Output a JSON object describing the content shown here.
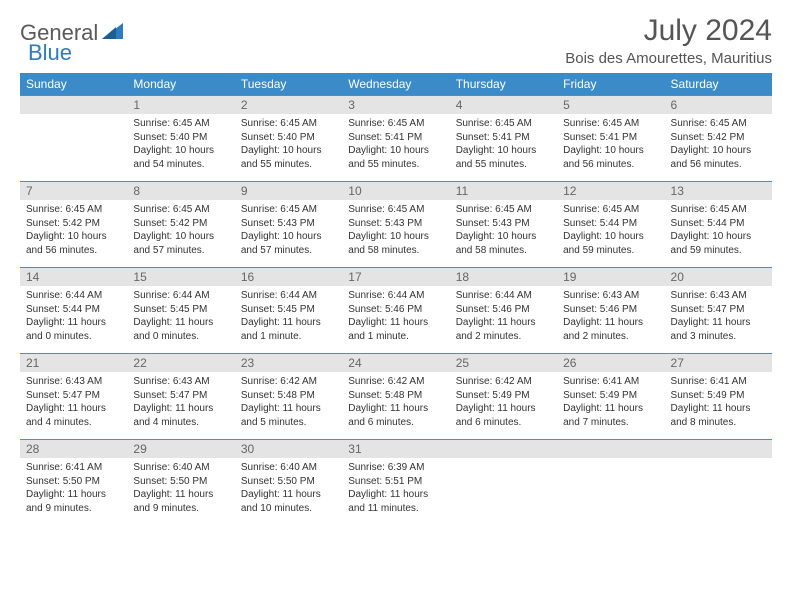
{
  "brand": {
    "part1": "General",
    "part2": "Blue"
  },
  "title": "July 2024",
  "location": "Bois des Amourettes, Mauritius",
  "styling": {
    "header_bg": "#3b8bc9",
    "header_text": "#ffffff",
    "daynum_bg": "#e4e4e4",
    "daynum_text": "#666666",
    "body_text": "#333333",
    "title_color": "#555555",
    "cell_border_top": "#4a8fc6",
    "page_bg": "#ffffff",
    "header_fontsize": 12,
    "daynum_fontsize": 12,
    "data_fontsize": 10,
    "title_fontsize": 30,
    "location_fontsize": 15
  },
  "weekdays": [
    "Sunday",
    "Monday",
    "Tuesday",
    "Wednesday",
    "Thursday",
    "Friday",
    "Saturday"
  ],
  "weeks": [
    [
      null,
      {
        "n": "1",
        "sr": "Sunrise: 6:45 AM",
        "ss": "Sunset: 5:40 PM",
        "dl": "Daylight: 10 hours and 54 minutes."
      },
      {
        "n": "2",
        "sr": "Sunrise: 6:45 AM",
        "ss": "Sunset: 5:40 PM",
        "dl": "Daylight: 10 hours and 55 minutes."
      },
      {
        "n": "3",
        "sr": "Sunrise: 6:45 AM",
        "ss": "Sunset: 5:41 PM",
        "dl": "Daylight: 10 hours and 55 minutes."
      },
      {
        "n": "4",
        "sr": "Sunrise: 6:45 AM",
        "ss": "Sunset: 5:41 PM",
        "dl": "Daylight: 10 hours and 55 minutes."
      },
      {
        "n": "5",
        "sr": "Sunrise: 6:45 AM",
        "ss": "Sunset: 5:41 PM",
        "dl": "Daylight: 10 hours and 56 minutes."
      },
      {
        "n": "6",
        "sr": "Sunrise: 6:45 AM",
        "ss": "Sunset: 5:42 PM",
        "dl": "Daylight: 10 hours and 56 minutes."
      }
    ],
    [
      {
        "n": "7",
        "sr": "Sunrise: 6:45 AM",
        "ss": "Sunset: 5:42 PM",
        "dl": "Daylight: 10 hours and 56 minutes."
      },
      {
        "n": "8",
        "sr": "Sunrise: 6:45 AM",
        "ss": "Sunset: 5:42 PM",
        "dl": "Daylight: 10 hours and 57 minutes."
      },
      {
        "n": "9",
        "sr": "Sunrise: 6:45 AM",
        "ss": "Sunset: 5:43 PM",
        "dl": "Daylight: 10 hours and 57 minutes."
      },
      {
        "n": "10",
        "sr": "Sunrise: 6:45 AM",
        "ss": "Sunset: 5:43 PM",
        "dl": "Daylight: 10 hours and 58 minutes."
      },
      {
        "n": "11",
        "sr": "Sunrise: 6:45 AM",
        "ss": "Sunset: 5:43 PM",
        "dl": "Daylight: 10 hours and 58 minutes."
      },
      {
        "n": "12",
        "sr": "Sunrise: 6:45 AM",
        "ss": "Sunset: 5:44 PM",
        "dl": "Daylight: 10 hours and 59 minutes."
      },
      {
        "n": "13",
        "sr": "Sunrise: 6:45 AM",
        "ss": "Sunset: 5:44 PM",
        "dl": "Daylight: 10 hours and 59 minutes."
      }
    ],
    [
      {
        "n": "14",
        "sr": "Sunrise: 6:44 AM",
        "ss": "Sunset: 5:44 PM",
        "dl": "Daylight: 11 hours and 0 minutes."
      },
      {
        "n": "15",
        "sr": "Sunrise: 6:44 AM",
        "ss": "Sunset: 5:45 PM",
        "dl": "Daylight: 11 hours and 0 minutes."
      },
      {
        "n": "16",
        "sr": "Sunrise: 6:44 AM",
        "ss": "Sunset: 5:45 PM",
        "dl": "Daylight: 11 hours and 1 minute."
      },
      {
        "n": "17",
        "sr": "Sunrise: 6:44 AM",
        "ss": "Sunset: 5:46 PM",
        "dl": "Daylight: 11 hours and 1 minute."
      },
      {
        "n": "18",
        "sr": "Sunrise: 6:44 AM",
        "ss": "Sunset: 5:46 PM",
        "dl": "Daylight: 11 hours and 2 minutes."
      },
      {
        "n": "19",
        "sr": "Sunrise: 6:43 AM",
        "ss": "Sunset: 5:46 PM",
        "dl": "Daylight: 11 hours and 2 minutes."
      },
      {
        "n": "20",
        "sr": "Sunrise: 6:43 AM",
        "ss": "Sunset: 5:47 PM",
        "dl": "Daylight: 11 hours and 3 minutes."
      }
    ],
    [
      {
        "n": "21",
        "sr": "Sunrise: 6:43 AM",
        "ss": "Sunset: 5:47 PM",
        "dl": "Daylight: 11 hours and 4 minutes."
      },
      {
        "n": "22",
        "sr": "Sunrise: 6:43 AM",
        "ss": "Sunset: 5:47 PM",
        "dl": "Daylight: 11 hours and 4 minutes."
      },
      {
        "n": "23",
        "sr": "Sunrise: 6:42 AM",
        "ss": "Sunset: 5:48 PM",
        "dl": "Daylight: 11 hours and 5 minutes."
      },
      {
        "n": "24",
        "sr": "Sunrise: 6:42 AM",
        "ss": "Sunset: 5:48 PM",
        "dl": "Daylight: 11 hours and 6 minutes."
      },
      {
        "n": "25",
        "sr": "Sunrise: 6:42 AM",
        "ss": "Sunset: 5:49 PM",
        "dl": "Daylight: 11 hours and 6 minutes."
      },
      {
        "n": "26",
        "sr": "Sunrise: 6:41 AM",
        "ss": "Sunset: 5:49 PM",
        "dl": "Daylight: 11 hours and 7 minutes."
      },
      {
        "n": "27",
        "sr": "Sunrise: 6:41 AM",
        "ss": "Sunset: 5:49 PM",
        "dl": "Daylight: 11 hours and 8 minutes."
      }
    ],
    [
      {
        "n": "28",
        "sr": "Sunrise: 6:41 AM",
        "ss": "Sunset: 5:50 PM",
        "dl": "Daylight: 11 hours and 9 minutes."
      },
      {
        "n": "29",
        "sr": "Sunrise: 6:40 AM",
        "ss": "Sunset: 5:50 PM",
        "dl": "Daylight: 11 hours and 9 minutes."
      },
      {
        "n": "30",
        "sr": "Sunrise: 6:40 AM",
        "ss": "Sunset: 5:50 PM",
        "dl": "Daylight: 11 hours and 10 minutes."
      },
      {
        "n": "31",
        "sr": "Sunrise: 6:39 AM",
        "ss": "Sunset: 5:51 PM",
        "dl": "Daylight: 11 hours and 11 minutes."
      },
      null,
      null,
      null
    ]
  ]
}
